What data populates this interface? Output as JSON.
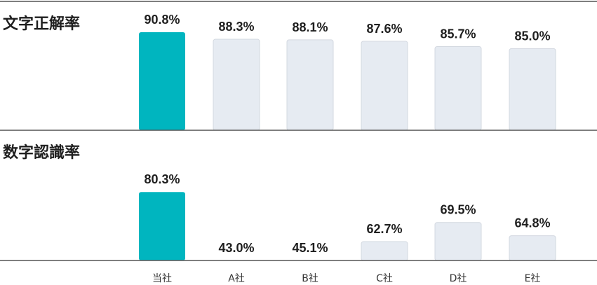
{
  "chart_data": {
    "type": "bar",
    "categories": [
      "当社",
      "A社",
      "B社",
      "C社",
      "D社",
      "E社"
    ],
    "panels": [
      {
        "title": "文字正解率",
        "values": [
          90.8,
          88.3,
          88.1,
          87.6,
          85.7,
          85.0
        ],
        "value_labels": [
          "90.8%",
          "88.3%",
          "88.1%",
          "87.6%",
          "85.7%",
          "85.0%"
        ]
      },
      {
        "title": "数字認識率",
        "values": [
          80.3,
          43.0,
          45.1,
          62.7,
          69.5,
          64.8
        ],
        "value_labels": [
          "80.3%",
          "43.0%",
          "45.1%",
          "62.7%",
          "69.5%",
          "64.8%"
        ]
      }
    ],
    "highlight_category": "当社",
    "colors": {
      "highlight": "#00b5bf",
      "other": "#e6ebf2",
      "other_stroke": "#d3d8e0",
      "axis": "#555555"
    },
    "grid": false,
    "legend": "none"
  }
}
